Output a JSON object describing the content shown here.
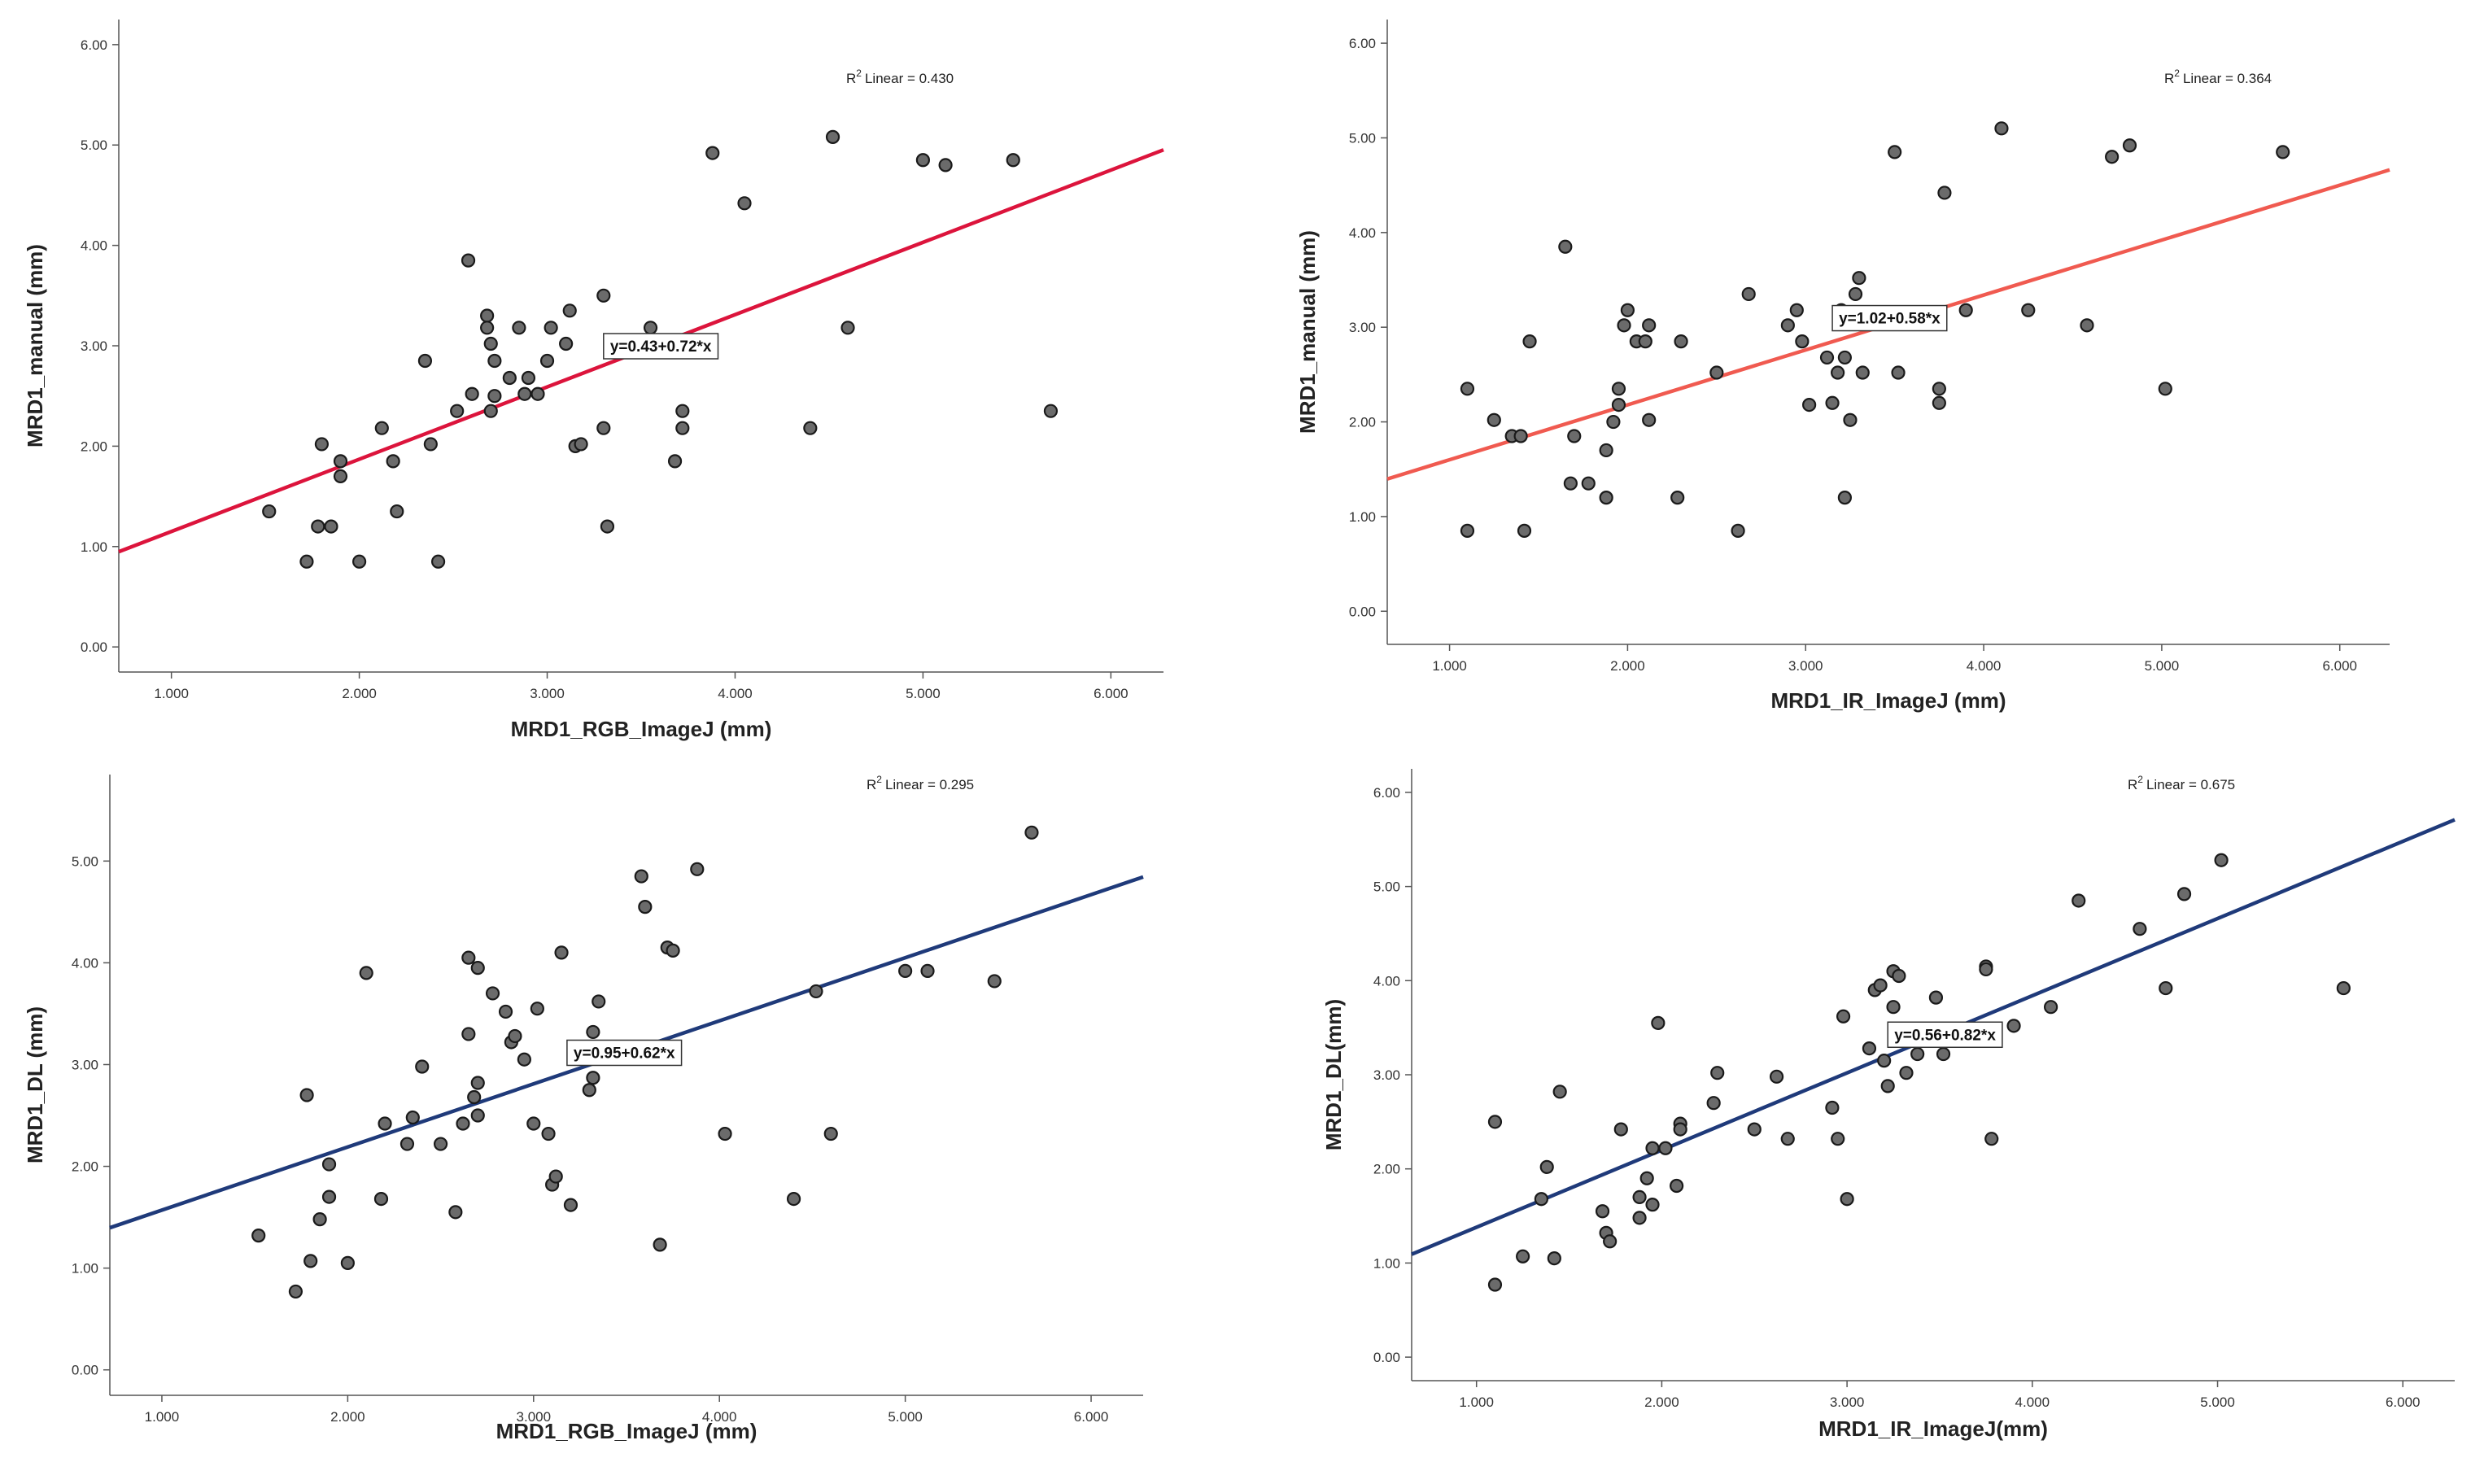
{
  "chart_data": [
    {
      "type": "scatter",
      "id": "p1",
      "xlabel": "MRD1_RGB_ImageJ (mm)",
      "ylabel": "MRD1_manual (mm)",
      "xlim": [
        0.72,
        6.28
      ],
      "ylim": [
        -0.25,
        6.25
      ],
      "x_ticks": [
        "1.000",
        "2.000",
        "3.000",
        "4.000",
        "5.000",
        "6.000"
      ],
      "y_ticks": [
        "0.00",
        "1.00",
        "2.00",
        "3.00",
        "4.00",
        "5.00",
        "6.00"
      ],
      "fit": {
        "intercept": 0.43,
        "slope": 0.72,
        "color": "#dc143c"
      },
      "equation": "y=0.43+0.72*x",
      "r2_label": "Linear = 0.430",
      "r2_prefix": "R",
      "r2_sup": "2",
      "points": [
        [
          1.52,
          1.35
        ],
        [
          1.72,
          0.85
        ],
        [
          1.78,
          1.2
        ],
        [
          1.8,
          2.02
        ],
        [
          1.85,
          1.2
        ],
        [
          1.9,
          1.85
        ],
        [
          1.9,
          1.7
        ],
        [
          2.0,
          0.85
        ],
        [
          2.12,
          2.18
        ],
        [
          2.18,
          1.85
        ],
        [
          2.2,
          1.35
        ],
        [
          2.35,
          2.85
        ],
        [
          2.38,
          2.02
        ],
        [
          2.42,
          0.85
        ],
        [
          2.52,
          2.35
        ],
        [
          2.58,
          3.85
        ],
        [
          2.6,
          2.52
        ],
        [
          2.68,
          3.3
        ],
        [
          2.68,
          3.18
        ],
        [
          2.7,
          3.02
        ],
        [
          2.7,
          2.35
        ],
        [
          2.72,
          2.85
        ],
        [
          2.72,
          2.5
        ],
        [
          2.8,
          2.68
        ],
        [
          2.85,
          3.18
        ],
        [
          2.88,
          2.52
        ],
        [
          2.9,
          2.68
        ],
        [
          2.95,
          2.52
        ],
        [
          3.0,
          2.85
        ],
        [
          3.02,
          3.18
        ],
        [
          3.1,
          3.02
        ],
        [
          3.12,
          3.35
        ],
        [
          3.15,
          2.0
        ],
        [
          3.18,
          2.02
        ],
        [
          3.3,
          3.5
        ],
        [
          3.3,
          2.18
        ],
        [
          3.32,
          1.2
        ],
        [
          3.55,
          3.18
        ],
        [
          3.68,
          1.85
        ],
        [
          3.72,
          2.35
        ],
        [
          3.72,
          2.18
        ],
        [
          3.88,
          4.92
        ],
        [
          4.05,
          4.42
        ],
        [
          4.4,
          2.18
        ],
        [
          4.52,
          5.08
        ],
        [
          4.6,
          3.18
        ],
        [
          5.0,
          4.85
        ],
        [
          5.12,
          4.8
        ],
        [
          5.48,
          4.85
        ],
        [
          5.68,
          2.35
        ]
      ]
    },
    {
      "type": "scatter",
      "id": "p2",
      "xlabel": "MRD1_IR_ImageJ (mm)",
      "ylabel": "MRD1_manual (mm)",
      "xlim": [
        0.65,
        6.28
      ],
      "ylim": [
        -0.35,
        6.25
      ],
      "x_ticks": [
        "1.000",
        "2.000",
        "3.000",
        "4.000",
        "5.000",
        "6.000"
      ],
      "y_ticks": [
        "0.00",
        "1.00",
        "2.00",
        "3.00",
        "4.00",
        "5.00",
        "6.00"
      ],
      "fit": {
        "intercept": 1.02,
        "slope": 0.58,
        "color": "#f05a50"
      },
      "equation": "y=1.02+0.58*x",
      "r2_label": "Linear = 0.364",
      "r2_prefix": "R",
      "r2_sup": "2",
      "points": [
        [
          1.1,
          2.35
        ],
        [
          1.1,
          0.85
        ],
        [
          1.25,
          2.02
        ],
        [
          1.35,
          1.85
        ],
        [
          1.4,
          1.85
        ],
        [
          1.42,
          0.85
        ],
        [
          1.45,
          2.85
        ],
        [
          1.65,
          3.85
        ],
        [
          1.68,
          1.35
        ],
        [
          1.7,
          1.85
        ],
        [
          1.78,
          1.35
        ],
        [
          1.88,
          1.7
        ],
        [
          1.88,
          1.2
        ],
        [
          1.92,
          2.0
        ],
        [
          1.95,
          2.35
        ],
        [
          1.95,
          2.18
        ],
        [
          1.98,
          3.02
        ],
        [
          2.0,
          3.18
        ],
        [
          2.05,
          2.85
        ],
        [
          2.1,
          2.85
        ],
        [
          2.12,
          3.02
        ],
        [
          2.12,
          2.02
        ],
        [
          2.28,
          1.2
        ],
        [
          2.3,
          2.85
        ],
        [
          2.5,
          2.52
        ],
        [
          2.62,
          0.85
        ],
        [
          2.68,
          3.35
        ],
        [
          2.9,
          3.02
        ],
        [
          2.95,
          3.18
        ],
        [
          2.98,
          2.85
        ],
        [
          3.02,
          2.18
        ],
        [
          3.12,
          2.68
        ],
        [
          3.15,
          2.2
        ],
        [
          3.18,
          2.52
        ],
        [
          3.2,
          3.18
        ],
        [
          3.22,
          2.68
        ],
        [
          3.22,
          1.2
        ],
        [
          3.25,
          2.02
        ],
        [
          3.28,
          3.35
        ],
        [
          3.3,
          3.52
        ],
        [
          3.32,
          2.52
        ],
        [
          3.5,
          4.85
        ],
        [
          3.52,
          2.52
        ],
        [
          3.75,
          2.35
        ],
        [
          3.75,
          2.2
        ],
        [
          3.78,
          4.42
        ],
        [
          3.9,
          3.18
        ],
        [
          4.1,
          5.1
        ],
        [
          4.25,
          3.18
        ],
        [
          4.58,
          3.02
        ],
        [
          4.72,
          4.8
        ],
        [
          4.82,
          4.92
        ],
        [
          5.02,
          2.35
        ],
        [
          5.68,
          4.85
        ]
      ]
    },
    {
      "type": "scatter",
      "id": "p3",
      "xlabel": "MRD1_RGB_ImageJ (mm)",
      "ylabel": "MRD1_DL (mm)",
      "xlim": [
        0.72,
        6.28
      ],
      "ylim": [
        -0.25,
        5.85
      ],
      "x_ticks": [
        "1.000",
        "2.000",
        "3.000",
        "4.000",
        "5.000",
        "6.000"
      ],
      "y_ticks": [
        "0.00",
        "1.00",
        "2.00",
        "3.00",
        "4.00",
        "5.00"
      ],
      "fit": {
        "intercept": 0.95,
        "slope": 0.62,
        "color": "#1f3a7a"
      },
      "equation": "y=0.95+0.62*x",
      "r2_label": "Linear = 0.295",
      "r2_prefix": "R",
      "r2_sup": "2",
      "points": [
        [
          1.52,
          1.32
        ],
        [
          1.72,
          0.77
        ],
        [
          1.78,
          2.7
        ],
        [
          1.8,
          1.07
        ],
        [
          1.85,
          1.48
        ],
        [
          1.9,
          1.7
        ],
        [
          1.9,
          2.02
        ],
        [
          2.0,
          1.05
        ],
        [
          2.1,
          3.9
        ],
        [
          2.18,
          1.68
        ],
        [
          2.2,
          2.42
        ],
        [
          2.32,
          2.22
        ],
        [
          2.35,
          2.48
        ],
        [
          2.4,
          2.98
        ],
        [
          2.5,
          2.22
        ],
        [
          2.58,
          1.55
        ],
        [
          2.62,
          2.42
        ],
        [
          2.65,
          4.05
        ],
        [
          2.65,
          3.3
        ],
        [
          2.68,
          2.68
        ],
        [
          2.7,
          3.95
        ],
        [
          2.7,
          2.82
        ],
        [
          2.7,
          2.5
        ],
        [
          2.78,
          3.7
        ],
        [
          2.85,
          3.52
        ],
        [
          2.88,
          3.22
        ],
        [
          2.9,
          3.28
        ],
        [
          2.95,
          3.05
        ],
        [
          3.0,
          2.42
        ],
        [
          3.02,
          3.55
        ],
        [
          3.08,
          2.32
        ],
        [
          3.1,
          1.82
        ],
        [
          3.12,
          1.9
        ],
        [
          3.15,
          4.1
        ],
        [
          3.2,
          1.62
        ],
        [
          3.3,
          2.75
        ],
        [
          3.32,
          2.87
        ],
        [
          3.35,
          3.62
        ],
        [
          3.32,
          3.32
        ],
        [
          3.58,
          4.85
        ],
        [
          3.6,
          4.55
        ],
        [
          3.68,
          1.23
        ],
        [
          3.72,
          4.15
        ],
        [
          3.75,
          4.12
        ],
        [
          3.88,
          4.92
        ],
        [
          4.03,
          2.32
        ],
        [
          4.4,
          1.68
        ],
        [
          4.52,
          3.72
        ],
        [
          4.6,
          2.32
        ],
        [
          5.0,
          3.92
        ],
        [
          5.12,
          3.92
        ],
        [
          5.48,
          3.82
        ],
        [
          5.68,
          5.28
        ]
      ]
    },
    {
      "type": "scatter",
      "id": "p4",
      "xlabel": "MRD1_IR_ImageJ(mm)",
      "ylabel": "MRD1_DL(mm)",
      "xlim": [
        0.65,
        6.28
      ],
      "ylim": [
        -0.25,
        6.25
      ],
      "x_ticks": [
        "1.000",
        "2.000",
        "3.000",
        "4.000",
        "5.000",
        "6.000"
      ],
      "y_ticks": [
        "0.00",
        "1.00",
        "2.00",
        "3.00",
        "4.00",
        "5.00",
        "6.00"
      ],
      "fit": {
        "intercept": 0.56,
        "slope": 0.82,
        "color": "#1f3a7a"
      },
      "equation": "y=0.56+0.82*x",
      "r2_label": "Linear = 0.675",
      "r2_prefix": "R",
      "r2_sup": "2",
      "points": [
        [
          1.1,
          2.5
        ],
        [
          1.1,
          0.77
        ],
        [
          1.25,
          1.07
        ],
        [
          1.35,
          1.68
        ],
        [
          1.38,
          2.02
        ],
        [
          1.42,
          1.05
        ],
        [
          1.45,
          2.82
        ],
        [
          1.68,
          1.55
        ],
        [
          1.7,
          1.32
        ],
        [
          1.72,
          1.23
        ],
        [
          1.78,
          2.42
        ],
        [
          1.88,
          1.48
        ],
        [
          1.88,
          1.7
        ],
        [
          1.92,
          1.9
        ],
        [
          1.95,
          2.22
        ],
        [
          1.95,
          1.62
        ],
        [
          1.98,
          3.55
        ],
        [
          2.02,
          2.22
        ],
        [
          2.08,
          1.82
        ],
        [
          2.1,
          2.48
        ],
        [
          2.1,
          2.42
        ],
        [
          2.28,
          2.7
        ],
        [
          2.3,
          3.02
        ],
        [
          2.5,
          2.42
        ],
        [
          2.62,
          2.98
        ],
        [
          2.68,
          2.32
        ],
        [
          2.92,
          2.65
        ],
        [
          2.95,
          2.32
        ],
        [
          2.98,
          3.62
        ],
        [
          3.0,
          1.68
        ],
        [
          3.12,
          3.28
        ],
        [
          3.15,
          3.9
        ],
        [
          3.18,
          3.95
        ],
        [
          3.2,
          3.15
        ],
        [
          3.22,
          2.88
        ],
        [
          3.25,
          3.72
        ],
        [
          3.25,
          4.1
        ],
        [
          3.28,
          4.05
        ],
        [
          3.32,
          3.02
        ],
        [
          3.38,
          3.22
        ],
        [
          3.48,
          3.82
        ],
        [
          3.52,
          3.22
        ],
        [
          3.75,
          4.15
        ],
        [
          3.75,
          4.12
        ],
        [
          3.78,
          2.32
        ],
        [
          3.9,
          3.52
        ],
        [
          4.1,
          3.72
        ],
        [
          4.25,
          4.85
        ],
        [
          4.58,
          4.55
        ],
        [
          4.72,
          3.92
        ],
        [
          4.82,
          4.92
        ],
        [
          5.02,
          5.28
        ],
        [
          5.68,
          3.92
        ]
      ]
    }
  ]
}
